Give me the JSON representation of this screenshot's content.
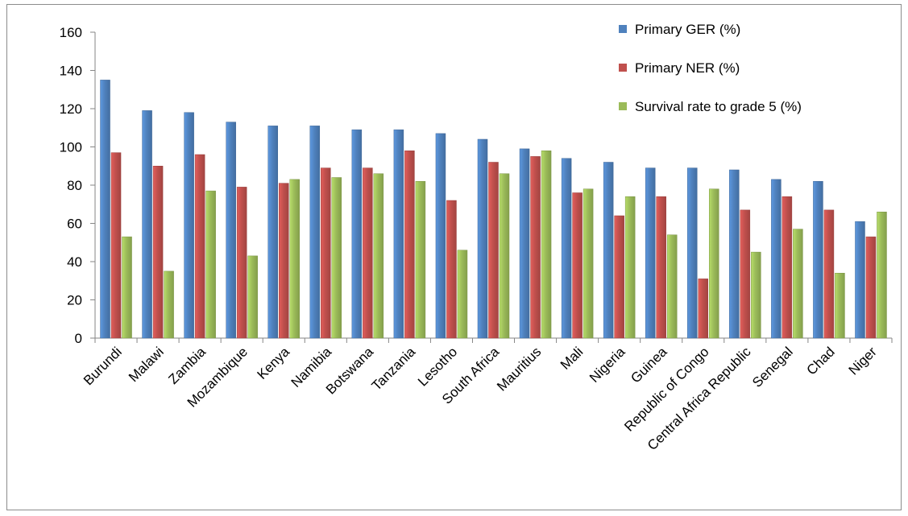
{
  "chart_data": {
    "type": "bar",
    "title": "",
    "xlabel": "",
    "ylabel": "",
    "ylim": [
      0,
      160
    ],
    "yticks": [
      0,
      20,
      40,
      60,
      80,
      100,
      120,
      140,
      160
    ],
    "grid": false,
    "legend_position": "top-right",
    "categories": [
      "Burundi",
      "Malawi",
      "Zambia",
      "Mozambique",
      "Kenya",
      "Namibia",
      "Botswana",
      "Tanzania",
      "Lesotho",
      "South Africa",
      "Mauritius",
      "Mali",
      "Nigeria",
      "Guinea",
      "Republic of Congo",
      "Central Africa Republic",
      "Senegal",
      "Chad",
      "Niger"
    ],
    "series": [
      {
        "name": "Primary GER (%)",
        "color": "#4f81bd",
        "values": [
          135,
          119,
          118,
          113,
          111,
          111,
          109,
          109,
          107,
          104,
          99,
          94,
          92,
          89,
          89,
          88,
          83,
          82,
          61
        ]
      },
      {
        "name": "Primary NER (%)",
        "color": "#c0504d",
        "values": [
          97,
          90,
          96,
          79,
          81,
          89,
          89,
          98,
          72,
          92,
          95,
          76,
          64,
          74,
          31,
          67,
          74,
          67,
          53
        ]
      },
      {
        "name": "Survival rate to grade 5 (%)",
        "color": "#9bbb59",
        "values": [
          53,
          35,
          77,
          43,
          83,
          84,
          86,
          82,
          46,
          86,
          98,
          78,
          74,
          54,
          78,
          45,
          57,
          34,
          66
        ]
      }
    ]
  }
}
